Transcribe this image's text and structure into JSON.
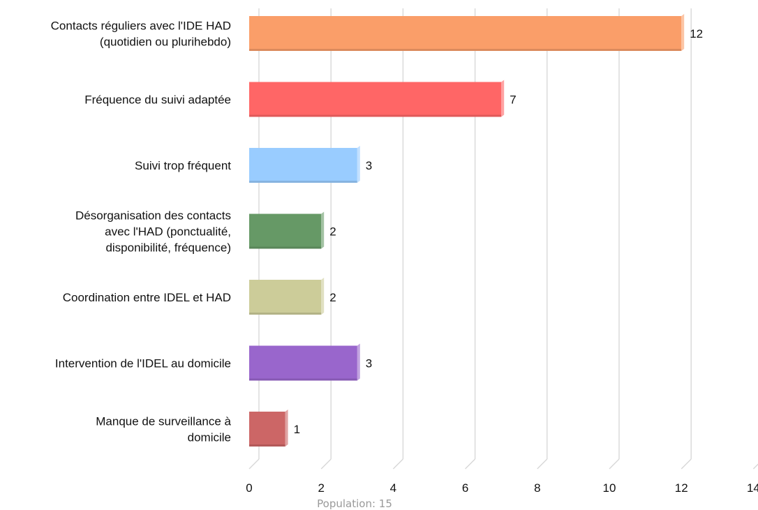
{
  "chart_data": {
    "type": "bar",
    "orientation": "horizontal",
    "categories": [
      [
        "Contacts réguliers avec l'IDE HAD",
        "(quotidien ou plurihebdo)"
      ],
      [
        "Fréquence du suivi adaptée"
      ],
      [
        "Suivi trop fréquent"
      ],
      [
        "Désorganisation des contacts",
        "avec l'HAD (ponctualité,",
        "disponibilité, fréquence)"
      ],
      [
        "Coordination entre IDEL et HAD"
      ],
      [
        "Intervention de l'IDEL au domicile"
      ],
      [
        "Manque de surveillance à",
        "domicile"
      ]
    ],
    "values": [
      12,
      7,
      3,
      2,
      2,
      3,
      1
    ],
    "value_labels": [
      "12",
      "7",
      "3",
      "2",
      "2",
      "3",
      "1"
    ],
    "colors": [
      "#fa9e69",
      "#ff6666",
      "#99ccff",
      "#669966",
      "#cccc99",
      "#9966cc",
      "#cc6666"
    ],
    "xlim": [
      0,
      14
    ],
    "x_ticks": [
      "0",
      "2",
      "4",
      "6",
      "8",
      "10",
      "12",
      "14"
    ],
    "grid": "vertical",
    "footer": "Population: 15"
  }
}
